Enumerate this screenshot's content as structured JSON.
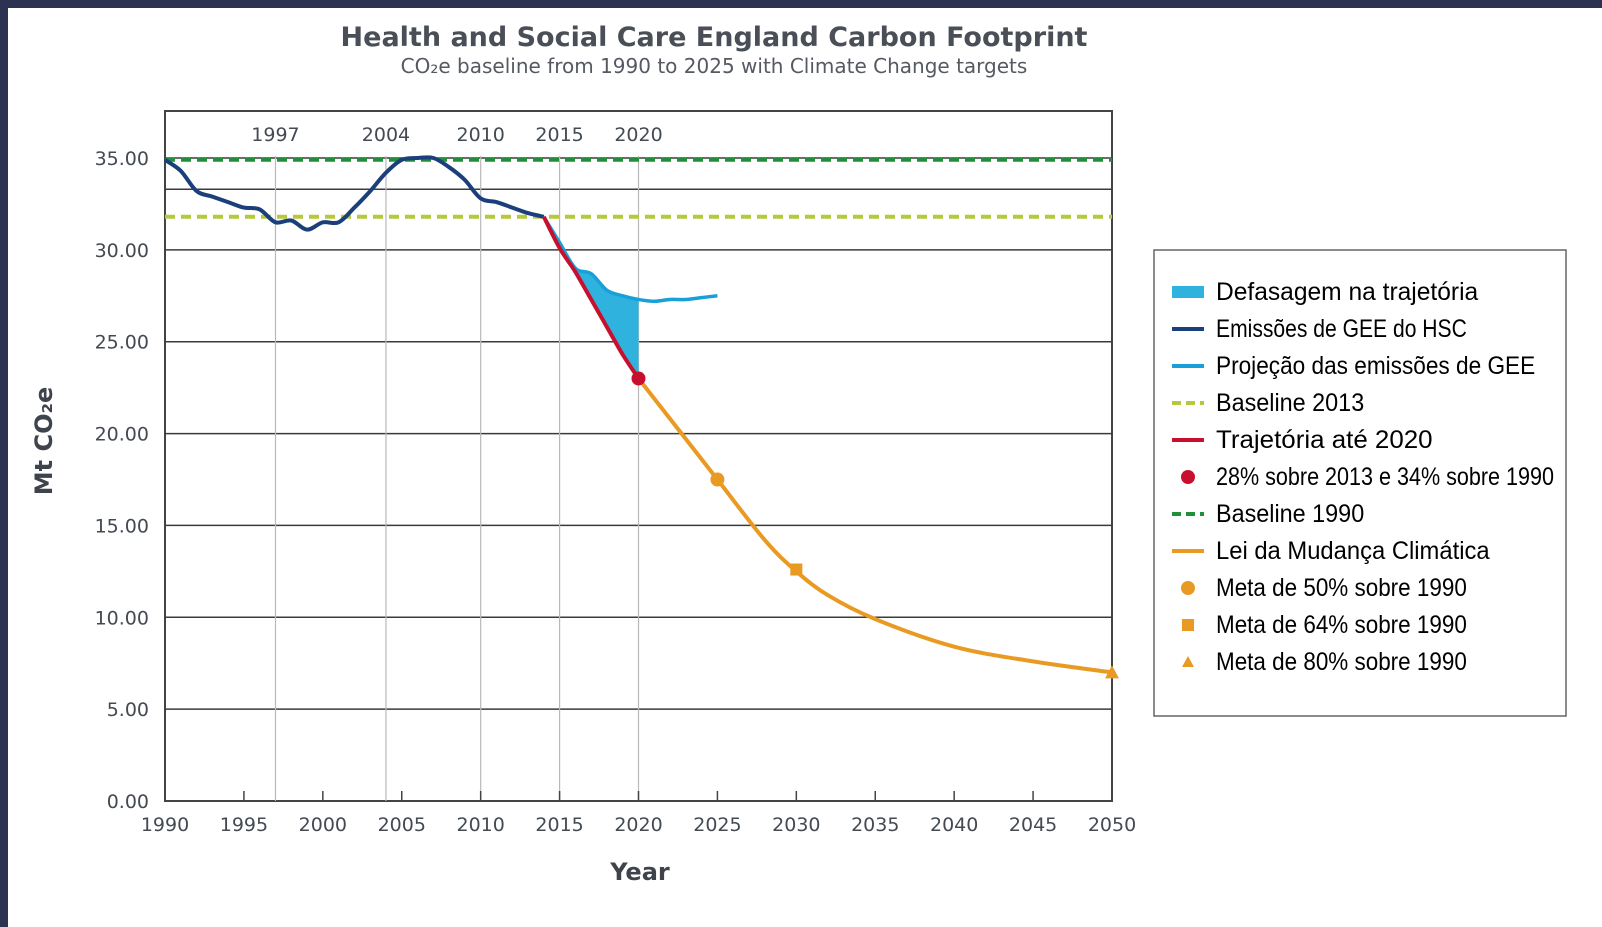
{
  "chart_data": {
    "type": "line",
    "title": "Health and Social Care England Carbon Footprint",
    "subtitle": "CO₂e baseline from 1990 to 2025 with Climate Change targets",
    "xlabel": "Year",
    "ylabel": "Mt CO₂e",
    "xlim": [
      1990,
      2050
    ],
    "ylim": [
      0,
      35
    ],
    "x_ticks": [
      "1990",
      "1995",
      "2000",
      "2005",
      "2010",
      "2015",
      "2020",
      "2025",
      "2030",
      "2035",
      "2040",
      "2045",
      "2050"
    ],
    "y_ticks": [
      "0.00",
      "5.00",
      "10.00",
      "15.00",
      "20.00",
      "25.00",
      "30.00",
      "35.00"
    ],
    "top_year_labels": [
      "1997",
      "2004",
      "2010",
      "2015",
      "2020"
    ],
    "top_year_values": [
      1997,
      2004,
      2010,
      2015,
      2020
    ],
    "grid": true,
    "legend_position": "right",
    "colors": {
      "emissions": "#1a3f7a",
      "projection": "#1aa0d8",
      "gap_fill": "#2fb2de",
      "baseline_2013": "#b7c93a",
      "baseline_1990": "#1f8f3a",
      "trajectory_2020": "#c8102e",
      "climate_change_act": "#e99a22",
      "grid": "#3b3b3b"
    },
    "series": [
      {
        "name": "Emissões de GEE do HSC",
        "x": [
          1990,
          1991,
          1992,
          1993,
          1994,
          1995,
          1996,
          1997,
          1998,
          1999,
          2000,
          2001,
          2002,
          2003,
          2004,
          2005,
          2006,
          2007,
          2008,
          2009,
          2010,
          2011,
          2012,
          2013,
          2014
        ],
        "y": [
          34.9,
          34.3,
          33.2,
          32.9,
          32.6,
          32.3,
          32.2,
          31.5,
          31.6,
          31.1,
          31.5,
          31.5,
          32.3,
          33.2,
          34.2,
          34.9,
          35.0,
          35.0,
          34.5,
          33.8,
          32.8,
          32.6,
          32.3,
          32.0,
          31.8
        ]
      },
      {
        "name": "Projeção das emissões de GEE",
        "x": [
          2014,
          2015,
          2016,
          2017,
          2018,
          2019,
          2020,
          2021,
          2022,
          2023,
          2024,
          2025
        ],
        "y": [
          31.8,
          30.4,
          29.0,
          28.7,
          27.8,
          27.5,
          27.3,
          27.2,
          27.3,
          27.3,
          27.4,
          27.5
        ]
      },
      {
        "name": "Trajetória até 2020",
        "x": [
          2014,
          2015,
          2016,
          2017,
          2018,
          2019,
          2020
        ],
        "y": [
          31.8,
          30.1,
          28.8,
          27.3,
          25.8,
          24.3,
          23.0
        ]
      },
      {
        "name": "Lei da Mudança Climática",
        "x": [
          2020,
          2022,
          2025,
          2028,
          2030,
          2032,
          2035,
          2040,
          2045,
          2050
        ],
        "y": [
          23.0,
          20.8,
          17.5,
          14.2,
          12.5,
          11.2,
          9.9,
          8.4,
          7.6,
          7.0
        ]
      },
      {
        "name": "Baseline 2013",
        "x": [
          1990,
          2050
        ],
        "y": [
          31.8,
          31.8
        ]
      },
      {
        "name": "Baseline 1990",
        "x": [
          1990,
          2050
        ],
        "y": [
          34.9,
          34.9
        ]
      }
    ],
    "gap_area": {
      "name": "Defasagem na trajetória",
      "x": [
        2014,
        2015,
        2016,
        2017,
        2018,
        2019,
        2020
      ],
      "upper": [
        31.8,
        30.4,
        29.0,
        28.7,
        27.8,
        27.5,
        27.3
      ],
      "lower": [
        31.8,
        30.1,
        28.8,
        27.3,
        25.8,
        24.3,
        23.0
      ]
    },
    "markers": [
      {
        "name": "28% sobre 2013 e 34% sobre 1990",
        "shape": "circle",
        "x": 2020,
        "y": 23.0,
        "color": "#c8102e"
      },
      {
        "name": "Meta de 50% sobre 1990",
        "shape": "circle",
        "x": 2025,
        "y": 17.5,
        "color": "#e99a22"
      },
      {
        "name": "Meta de 64% sobre 1990",
        "shape": "square",
        "x": 2030,
        "y": 12.6,
        "color": "#e99a22"
      },
      {
        "name": "Meta de 80% sobre 1990",
        "shape": "triangle",
        "x": 2050,
        "y": 7.0,
        "color": "#e99a22"
      }
    ],
    "legend": [
      {
        "label": "Defasagem na trajetória",
        "kind": "patch",
        "color": "#2fb2de"
      },
      {
        "label": "Emissões de GEE do HSC",
        "kind": "line",
        "color": "#1a3f7a"
      },
      {
        "label": "Projeção das emissões de GEE",
        "kind": "line",
        "color": "#1aa0d8"
      },
      {
        "label": "Baseline 2013",
        "kind": "dash",
        "color": "#b7c93a"
      },
      {
        "label": "Trajetória até 2020",
        "kind": "line",
        "color": "#c8102e"
      },
      {
        "label": "28% sobre 2013 e 34% sobre 1990",
        "kind": "circle",
        "color": "#c8102e"
      },
      {
        "label": "Baseline 1990",
        "kind": "dash",
        "color": "#1f8f3a"
      },
      {
        "label": "Lei da Mudança Climática",
        "kind": "line",
        "color": "#e99a22"
      },
      {
        "label": "Meta de 50% sobre 1990",
        "kind": "circle",
        "color": "#e99a22"
      },
      {
        "label": "Meta de 64% sobre 1990",
        "kind": "square",
        "color": "#e99a22"
      },
      {
        "label": "Meta de 80% sobre 1990",
        "kind": "triangle",
        "color": "#e99a22"
      }
    ]
  }
}
